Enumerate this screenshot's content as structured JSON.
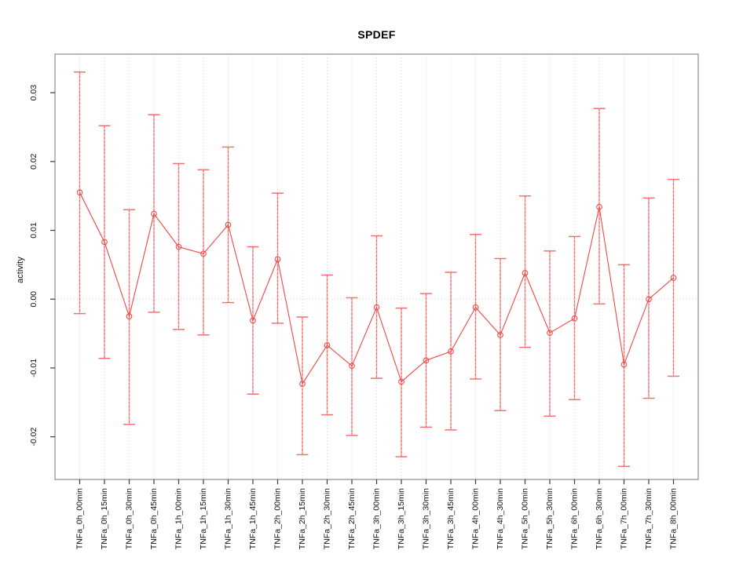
{
  "chart_data": {
    "type": "line",
    "title": "SPDEF",
    "xlabel": "",
    "ylabel": "activity",
    "legend": "none",
    "grid": "vertical dotted gridline at every category; dotted horizontal reference line at y=0",
    "marker": "open-circle",
    "error_bars": true,
    "ylim": [
      -0.0262,
      0.0356
    ],
    "yticks": [
      -0.02,
      -0.01,
      0,
      0.01,
      0.02,
      0.03
    ],
    "ytick_labels": [
      "-0.02",
      "-0.01",
      "0.00",
      "0.01",
      "0.02",
      "0.03"
    ],
    "categories": [
      "TNFa_0h_00min",
      "TNFa_0h_15min",
      "TNFa_0h_30min",
      "TNFa_0h_45min",
      "TNFa_1h_00min",
      "TNFa_1h_15min",
      "TNFa_1h_30min",
      "TNFa_1h_45min",
      "TNFa_2h_00min",
      "TNFa_2h_15min",
      "TNFa_2h_30min",
      "TNFa_2h_45min",
      "TNFa_3h_00min",
      "TNFa_3h_15min",
      "TNFa_3h_30min",
      "TNFa_3h_45min",
      "TNFa_4h_00min",
      "TNFa_4h_30min",
      "TNFa_5h_00min",
      "TNFa_5h_30min",
      "TNFa_6h_00min",
      "TNFa_6h_30min",
      "TNFa_7h_00min",
      "TNFa_7h_30min",
      "TNFa_8h_00min"
    ],
    "series": [
      {
        "name": "activity",
        "values": [
          0.0155,
          0.0083,
          -0.0025,
          0.0124,
          0.0076,
          0.0066,
          0.0108,
          -0.0031,
          0.0058,
          -0.0123,
          -0.0067,
          -0.0097,
          -0.0012,
          -0.012,
          -0.0089,
          -0.0076,
          -0.0012,
          -0.0052,
          0.0038,
          -0.0049,
          -0.0028,
          0.0134,
          -0.0095,
          0.0,
          0.0031
        ],
        "error_low": [
          -0.0021,
          -0.0086,
          -0.0182,
          -0.0019,
          -0.0044,
          -0.0052,
          -0.0005,
          -0.0138,
          -0.0035,
          -0.0226,
          -0.0168,
          -0.0198,
          -0.0115,
          -0.0229,
          -0.0186,
          -0.019,
          -0.0116,
          -0.0162,
          -0.007,
          -0.017,
          -0.0146,
          -0.0007,
          -0.0243,
          -0.0144,
          -0.0112
        ],
        "error_high": [
          0.033,
          0.0252,
          0.013,
          0.0268,
          0.0197,
          0.0188,
          0.0221,
          0.0076,
          0.0154,
          -0.0026,
          0.0035,
          0.0002,
          0.0092,
          -0.0013,
          0.0008,
          0.0039,
          0.0094,
          0.0059,
          0.015,
          0.007,
          0.0091,
          0.0277,
          0.005,
          0.0147,
          0.0174
        ]
      }
    ],
    "colors": {
      "line": "#ee4f4d",
      "marker": "#ee4f4d",
      "error_bar_base": "#f7abab",
      "error_bar_dash": "#ef6060",
      "error_bar_cap": "#f37070",
      "grid": "#d6d6d6",
      "zero_line": "#cfcfcf",
      "axis_box": "#8c8c8c",
      "tick": "#3a3a3a",
      "text": "#111111",
      "background": "#ffffff"
    }
  }
}
